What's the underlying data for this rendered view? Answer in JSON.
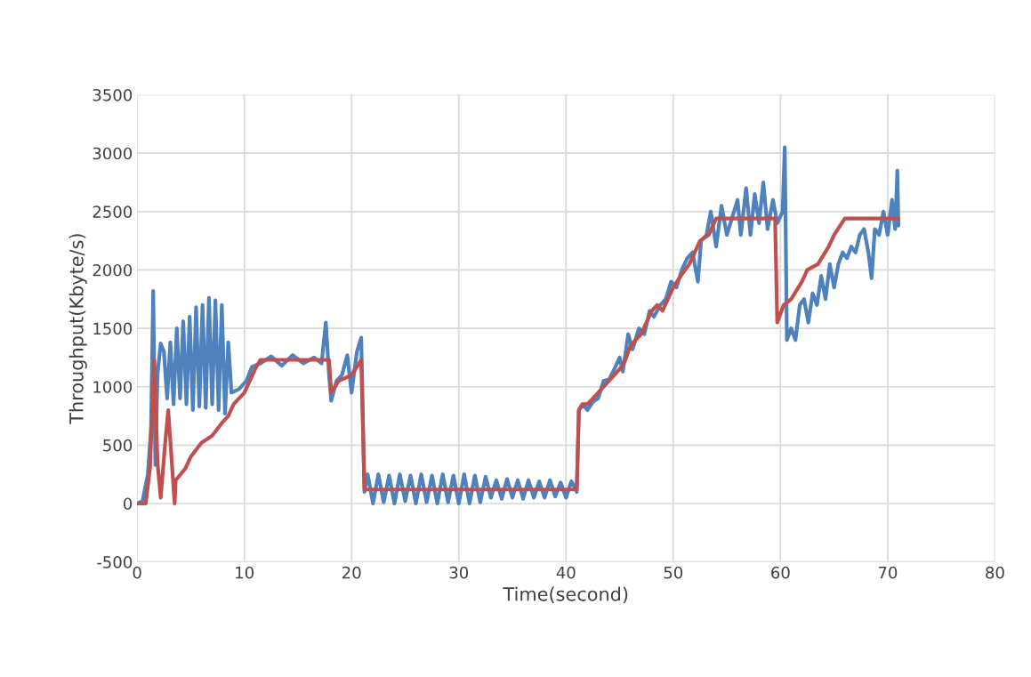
{
  "chart_data": {
    "type": "line",
    "xlabel": "Time(second)",
    "ylabel": "Throughput(Kbyte/s)",
    "xlim": [
      0,
      80
    ],
    "xticks": [
      0,
      10,
      20,
      30,
      40,
      50,
      60,
      70,
      80
    ],
    "ylim": [
      -500,
      3500
    ],
    "yticks": [
      -500,
      0,
      500,
      1000,
      1500,
      2000,
      2500,
      3000,
      3500
    ],
    "grid": true,
    "marker": "none",
    "line_style": "solid",
    "series": [
      {
        "color": "#4f81bd",
        "x": [
          0,
          0.5,
          1.0,
          1.3,
          1.5,
          1.7,
          1.9,
          2.2,
          2.5,
          2.8,
          3.1,
          3.4,
          3.7,
          4.0,
          4.3,
          4.6,
          4.9,
          5.2,
          5.5,
          5.8,
          6.1,
          6.4,
          6.7,
          7.0,
          7.3,
          7.6,
          7.9,
          8.2,
          8.5,
          8.8,
          9.5,
          10.2,
          10.7,
          11.5,
          12.5,
          13.5,
          14.5,
          15.5,
          16.5,
          17.2,
          17.6,
          17.9,
          18.1,
          18.6,
          19.1,
          19.6,
          20.0,
          20.5,
          20.9,
          21.2,
          21.5,
          22,
          22.5,
          23,
          23.5,
          24,
          24.5,
          25,
          25.5,
          26,
          26.5,
          27,
          27.5,
          28,
          28.5,
          29,
          29.5,
          30,
          30.5,
          31,
          31.5,
          32,
          32.5,
          33,
          33.5,
          34,
          34.5,
          35,
          35.5,
          36,
          36.5,
          37,
          37.5,
          38,
          38.5,
          39,
          39.5,
          40,
          40.5,
          41,
          41.2,
          41.6,
          42,
          42.5,
          43,
          43.5,
          44,
          44.5,
          45,
          45.3,
          45.8,
          46.2,
          46.8,
          47.3,
          47.8,
          48.2,
          48.8,
          49.3,
          49.8,
          50.3,
          50.8,
          51.3,
          51.8,
          52.3,
          52.6,
          53.1,
          53.5,
          54.0,
          54.5,
          55,
          55.5,
          56,
          56.3,
          56.8,
          57.2,
          57.6,
          58.0,
          58.4,
          58.8,
          59.3,
          59.7,
          60.2,
          60.4,
          60.6,
          61.0,
          61.4,
          61.8,
          62.2,
          62.6,
          63.0,
          63.4,
          63.8,
          64.2,
          64.6,
          65,
          65.4,
          65.8,
          66.2,
          66.6,
          67,
          67.4,
          67.8,
          68.2,
          68.5,
          68.8,
          69.2,
          69.6,
          70,
          70.4,
          70.7,
          70.9,
          71
        ],
        "values": [
          0,
          20,
          250,
          650,
          1820,
          330,
          1100,
          1370,
          1300,
          900,
          1380,
          850,
          1500,
          900,
          1560,
          850,
          1600,
          800,
          1680,
          830,
          1700,
          820,
          1760,
          850,
          1740,
          800,
          1700,
          770,
          1380,
          950,
          980,
          1050,
          1170,
          1200,
          1260,
          1180,
          1270,
          1200,
          1250,
          1200,
          1550,
          1100,
          880,
          1050,
          1100,
          1270,
          950,
          1300,
          1420,
          100,
          250,
          0,
          250,
          10,
          240,
          0,
          250,
          20,
          240,
          0,
          250,
          10,
          240,
          0,
          250,
          10,
          240,
          0,
          250,
          0,
          240,
          10,
          230,
          50,
          200,
          40,
          210,
          50,
          200,
          40,
          200,
          50,
          190,
          50,
          200,
          60,
          180,
          50,
          190,
          100,
          800,
          850,
          800,
          870,
          900,
          1050,
          1060,
          1150,
          1250,
          1130,
          1450,
          1320,
          1500,
          1450,
          1650,
          1600,
          1700,
          1750,
          1900,
          1850,
          2000,
          2100,
          2150,
          1900,
          2250,
          2300,
          2500,
          2200,
          2550,
          2300,
          2450,
          2600,
          2300,
          2700,
          2300,
          2650,
          2400,
          2750,
          2350,
          2600,
          2400,
          2500,
          3050,
          1400,
          1500,
          1400,
          1700,
          1750,
          1550,
          1800,
          1700,
          1950,
          1750,
          2050,
          1850,
          2050,
          2150,
          2100,
          2200,
          2150,
          2300,
          2350,
          2150,
          1930,
          2350,
          2300,
          2500,
          2300,
          2600,
          2350,
          2850,
          2380
        ]
      },
      {
        "color": "#c0504d",
        "x": [
          0,
          0.8,
          1.2,
          1.6,
          1.9,
          2.2,
          2.6,
          2.9,
          3.2,
          3.5,
          3.6,
          4.5,
          5,
          6,
          7,
          8,
          8.5,
          9,
          10,
          11,
          11.5,
          17.9,
          18.1,
          18.8,
          20,
          20.9,
          21.2,
          25,
          41,
          41.2,
          41.5,
          42,
          43,
          44,
          45,
          45.5,
          46,
          47,
          48,
          48.5,
          49,
          50,
          50.7,
          51.5,
          52.5,
          53.3,
          54,
          59.5,
          59.7,
          60.3,
          61,
          62,
          62.5,
          63.5,
          64.5,
          65,
          66,
          71
        ],
        "values": [
          0,
          0,
          300,
          1230,
          350,
          50,
          500,
          800,
          400,
          0,
          200,
          300,
          400,
          520,
          580,
          700,
          750,
          850,
          950,
          1150,
          1230,
          1230,
          950,
          1050,
          1100,
          1230,
          120,
          120,
          120,
          800,
          850,
          850,
          950,
          1050,
          1150,
          1220,
          1350,
          1450,
          1650,
          1700,
          1650,
          1850,
          1950,
          2050,
          2250,
          2300,
          2440,
          2440,
          1550,
          1700,
          1750,
          1900,
          2000,
          2050,
          2200,
          2300,
          2440,
          2440
        ]
      }
    ]
  }
}
